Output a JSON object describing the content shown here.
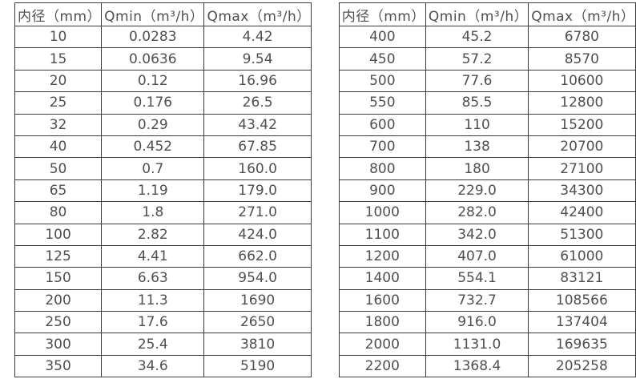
{
  "colors": {
    "table_border": "#3a3a3a",
    "table_text": "#4f4f4f",
    "background": "#ffffff"
  },
  "tables": [
    {
      "name": "small-diameter-flow-table",
      "headers": [
        "内径（mm）",
        "Qmin（m³/h）",
        "Qmax（m³/h）"
      ],
      "rows": [
        [
          "10",
          "0.0283",
          "4.42"
        ],
        [
          "15",
          "0.0636",
          "9.54"
        ],
        [
          "20",
          "0.12",
          "16.96"
        ],
        [
          "25",
          "0.176",
          "26.5"
        ],
        [
          "32",
          "0.29",
          "43.42"
        ],
        [
          "40",
          "0.452",
          "67.85"
        ],
        [
          "50",
          "0.7",
          "160.0"
        ],
        [
          "65",
          "1.19",
          "179.0"
        ],
        [
          "80",
          "1.8",
          "271.0"
        ],
        [
          "100",
          "2.82",
          "424.0"
        ],
        [
          "125",
          "4.41",
          "662.0"
        ],
        [
          "150",
          "6.63",
          "954.0"
        ],
        [
          "200",
          "11.3",
          "1690"
        ],
        [
          "250",
          "17.6",
          "2650"
        ],
        [
          "300",
          "25.4",
          "3810"
        ],
        [
          "350",
          "34.6",
          "5190"
        ]
      ]
    },
    {
      "name": "large-diameter-flow-table",
      "headers": [
        "内径（mm）",
        "Qmin（m³/h）",
        "Qmax（m³/h）"
      ],
      "rows": [
        [
          "400",
          "45.2",
          "6780"
        ],
        [
          "450",
          "57.2",
          "8570"
        ],
        [
          "500",
          "77.6",
          "10600"
        ],
        [
          "550",
          "85.5",
          "12800"
        ],
        [
          "600",
          "110",
          "15200"
        ],
        [
          "700",
          "138",
          "20700"
        ],
        [
          "800",
          "180",
          "27100"
        ],
        [
          "900",
          "229.0",
          "34300"
        ],
        [
          "1000",
          "282.0",
          "42400"
        ],
        [
          "1100",
          "342.0",
          "51300"
        ],
        [
          "1200",
          "407.0",
          "61000"
        ],
        [
          "1400",
          "554.1",
          "83121"
        ],
        [
          "1600",
          "732.7",
          "108566"
        ],
        [
          "1800",
          "916.0",
          "137404"
        ],
        [
          "2000",
          "1131.0",
          "169635"
        ],
        [
          "2200",
          "1368.4",
          "205258"
        ]
      ]
    }
  ]
}
